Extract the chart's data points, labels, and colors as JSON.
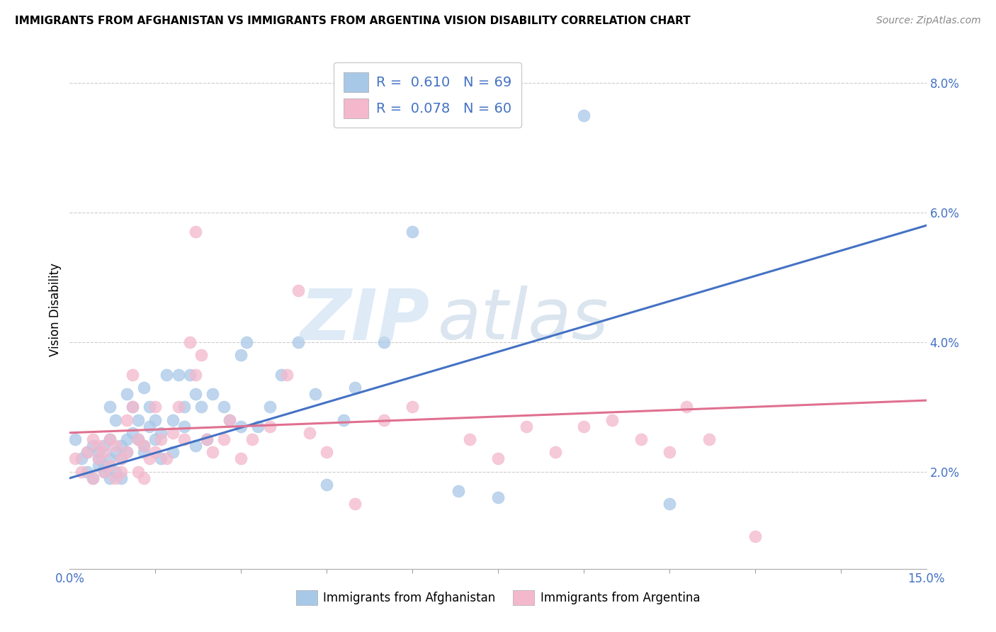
{
  "title": "IMMIGRANTS FROM AFGHANISTAN VS IMMIGRANTS FROM ARGENTINA VISION DISABILITY CORRELATION CHART",
  "source": "Source: ZipAtlas.com",
  "ylabel": "Vision Disability",
  "x_min": 0.0,
  "x_max": 0.15,
  "y_min": 0.005,
  "y_max": 0.085,
  "y_ticks": [
    0.02,
    0.04,
    0.06,
    0.08
  ],
  "y_tick_labels": [
    "2.0%",
    "4.0%",
    "6.0%",
    "8.0%"
  ],
  "afghanistan_color": "#a8c8e8",
  "afghanistan_line_color": "#4472c4",
  "argentina_color": "#f4b8cc",
  "argentina_line_color": "#e07090",
  "afghanistan_R": 0.61,
  "afghanistan_N": 69,
  "argentina_R": 0.078,
  "argentina_N": 60,
  "afghanistan_line_start_x": 0.0,
  "afghanistan_line_start_y": 0.019,
  "afghanistan_line_end_x": 0.15,
  "afghanistan_line_end_y": 0.058,
  "argentina_line_start_x": 0.0,
  "argentina_line_start_y": 0.026,
  "argentina_line_end_x": 0.15,
  "argentina_line_end_y": 0.031,
  "afghanistan_scatter_x": [
    0.001,
    0.002,
    0.003,
    0.003,
    0.004,
    0.004,
    0.005,
    0.005,
    0.005,
    0.006,
    0.006,
    0.006,
    0.007,
    0.007,
    0.007,
    0.007,
    0.008,
    0.008,
    0.008,
    0.009,
    0.009,
    0.009,
    0.01,
    0.01,
    0.01,
    0.011,
    0.011,
    0.012,
    0.012,
    0.013,
    0.013,
    0.013,
    0.014,
    0.014,
    0.015,
    0.015,
    0.016,
    0.016,
    0.017,
    0.018,
    0.018,
    0.019,
    0.02,
    0.02,
    0.021,
    0.022,
    0.022,
    0.023,
    0.024,
    0.025,
    0.027,
    0.028,
    0.03,
    0.03,
    0.031,
    0.033,
    0.035,
    0.037,
    0.04,
    0.043,
    0.045,
    0.048,
    0.05,
    0.055,
    0.06,
    0.068,
    0.075,
    0.09,
    0.105
  ],
  "afghanistan_scatter_y": [
    0.025,
    0.022,
    0.023,
    0.02,
    0.024,
    0.019,
    0.022,
    0.021,
    0.023,
    0.02,
    0.021,
    0.024,
    0.019,
    0.022,
    0.025,
    0.03,
    0.02,
    0.023,
    0.028,
    0.022,
    0.019,
    0.024,
    0.023,
    0.025,
    0.032,
    0.03,
    0.026,
    0.025,
    0.028,
    0.024,
    0.023,
    0.033,
    0.027,
    0.03,
    0.025,
    0.028,
    0.022,
    0.026,
    0.035,
    0.023,
    0.028,
    0.035,
    0.027,
    0.03,
    0.035,
    0.032,
    0.024,
    0.03,
    0.025,
    0.032,
    0.03,
    0.028,
    0.027,
    0.038,
    0.04,
    0.027,
    0.03,
    0.035,
    0.04,
    0.032,
    0.018,
    0.028,
    0.033,
    0.04,
    0.057,
    0.017,
    0.016,
    0.075,
    0.015
  ],
  "argentina_scatter_x": [
    0.001,
    0.002,
    0.003,
    0.004,
    0.004,
    0.005,
    0.005,
    0.006,
    0.006,
    0.007,
    0.007,
    0.008,
    0.008,
    0.009,
    0.009,
    0.01,
    0.01,
    0.011,
    0.011,
    0.012,
    0.012,
    0.013,
    0.013,
    0.014,
    0.015,
    0.015,
    0.016,
    0.017,
    0.018,
    0.019,
    0.02,
    0.021,
    0.022,
    0.022,
    0.023,
    0.024,
    0.025,
    0.027,
    0.028,
    0.03,
    0.032,
    0.035,
    0.038,
    0.04,
    0.042,
    0.045,
    0.05,
    0.055,
    0.06,
    0.07,
    0.075,
    0.08,
    0.085,
    0.09,
    0.095,
    0.1,
    0.105,
    0.108,
    0.112,
    0.12
  ],
  "argentina_scatter_y": [
    0.022,
    0.02,
    0.023,
    0.019,
    0.025,
    0.022,
    0.024,
    0.02,
    0.023,
    0.021,
    0.025,
    0.019,
    0.024,
    0.022,
    0.02,
    0.023,
    0.028,
    0.035,
    0.03,
    0.025,
    0.02,
    0.024,
    0.019,
    0.022,
    0.023,
    0.03,
    0.025,
    0.022,
    0.026,
    0.03,
    0.025,
    0.04,
    0.035,
    0.057,
    0.038,
    0.025,
    0.023,
    0.025,
    0.028,
    0.022,
    0.025,
    0.027,
    0.035,
    0.048,
    0.026,
    0.023,
    0.015,
    0.028,
    0.03,
    0.025,
    0.022,
    0.027,
    0.023,
    0.027,
    0.028,
    0.025,
    0.023,
    0.03,
    0.025,
    0.01
  ]
}
